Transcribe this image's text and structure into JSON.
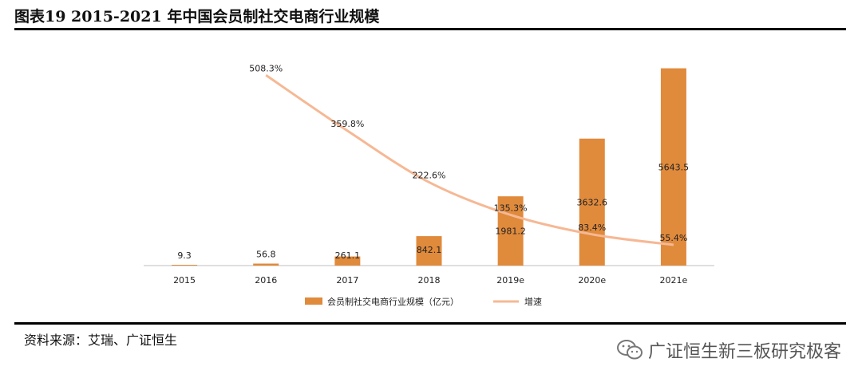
{
  "header": {
    "title": "图表19 2015-2021 年中国会员制社交电商行业规模"
  },
  "footer": {
    "source": "资料来源：艾瑞、广证恒生",
    "watermark": "广证恒生新三板研究极客",
    "watermark_icon": "wechat-icon"
  },
  "chart_data": {
    "type": "bar",
    "categories": [
      "2015",
      "2016",
      "2017",
      "2018",
      "2019e",
      "2020e",
      "2021e"
    ],
    "series": [
      {
        "name": "会员制社交电商行业规模（亿元）",
        "type": "bar",
        "values": [
          9.3,
          56.8,
          261.1,
          842.1,
          1981.2,
          3632.6,
          5643.5
        ],
        "color": "#e08a3c"
      },
      {
        "name": "增速",
        "type": "line",
        "x": [
          "2016",
          "2017",
          "2018",
          "2019e",
          "2020e",
          "2021e"
        ],
        "values": [
          508.3,
          359.8,
          222.6,
          135.3,
          83.4,
          55.4
        ],
        "labels": [
          "508.3%",
          "359.8%",
          "222.6%",
          "135.3%",
          "83.4%",
          "55.4%"
        ],
        "color": "#f6b894"
      }
    ],
    "data_labels": [
      "9.3",
      "56.8",
      "261.1",
      "842.1",
      "1981.2",
      "3632.6",
      "5643.5"
    ],
    "bar_ylim": [
      0,
      6000
    ],
    "line_ylim": [
      0,
      560
    ],
    "legend_position": "bottom",
    "grid": false
  }
}
